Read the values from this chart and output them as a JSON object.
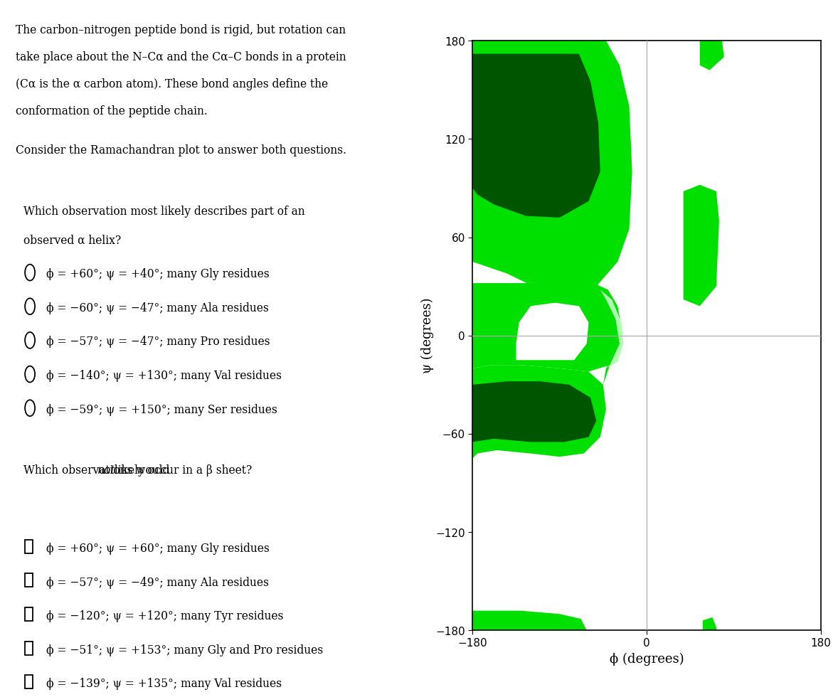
{
  "q1_options": [
    "ϕ = +60°; ψ = +40°; many Gly residues",
    "ϕ = −60°; ψ = −47°; many Ala residues",
    "ϕ = −57°; ψ = −47°; many Pro residues",
    "ϕ = −140°; ψ = +130°; many Val residues",
    "ϕ = −59°; ψ = +150°; many Ser residues"
  ],
  "q2_options": [
    "ϕ = +60°; ψ = +60°; many Gly residues",
    "ϕ = −57°; ψ = −49°; many Ala residues",
    "ϕ = −120°; ψ = +120°; many Tyr residues",
    "ϕ = −51°; ψ = +153°; many Gly and Pro residues",
    "ϕ = −139°; ψ = +135°; many Val residues"
  ],
  "xlabel": "ϕ (degrees)",
  "ylabel": "ψ (degrees)",
  "color_light_green": "#00e000",
  "color_mid_green": "#80ff80",
  "color_dark_green": "#005500",
  "background": "#ffffff"
}
